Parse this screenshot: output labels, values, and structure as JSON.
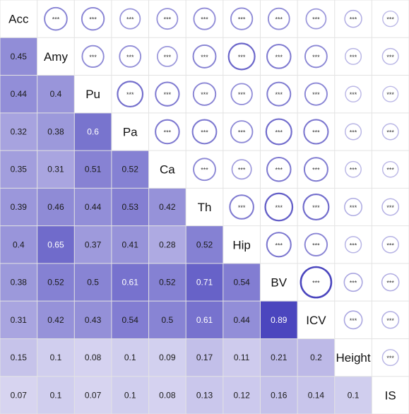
{
  "chart_data": {
    "type": "heatmap",
    "variables": [
      "Acc",
      "Amy",
      "Pu",
      "Pa",
      "Ca",
      "Th",
      "Hip",
      "BV",
      "ICV",
      "Height",
      "IS"
    ],
    "lower_triangle": [
      [],
      [
        0.45
      ],
      [
        0.44,
        0.4
      ],
      [
        0.32,
        0.38,
        0.6
      ],
      [
        0.35,
        0.31,
        0.51,
        0.52
      ],
      [
        0.39,
        0.46,
        0.44,
        0.53,
        0.42
      ],
      [
        0.4,
        0.65,
        0.37,
        0.41,
        0.28,
        0.52
      ],
      [
        0.38,
        0.52,
        0.5,
        0.61,
        0.52,
        0.71,
        0.54
      ],
      [
        0.31,
        0.42,
        0.43,
        0.54,
        0.5,
        0.61,
        0.44,
        0.89
      ],
      [
        0.15,
        0.1,
        0.08,
        0.1,
        0.09,
        0.17,
        0.11,
        0.21,
        0.2
      ],
      [
        0.07,
        0.1,
        0.07,
        0.1,
        0.08,
        0.13,
        0.12,
        0.16,
        0.14,
        0.1
      ]
    ],
    "upper_triangle_label": "***",
    "upper_triangle_encoding": "circle size and color intensity represent correlation magnitude",
    "color_low": "#f4f2fb",
    "color_high": "#3b35b8",
    "circle_color": "#5a54b0"
  }
}
